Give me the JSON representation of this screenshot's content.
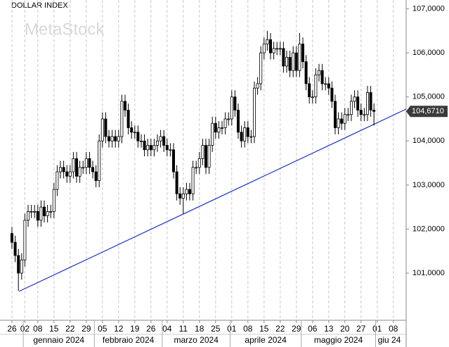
{
  "chart_data": {
    "type": "candlestick",
    "title": "DOLLAR INDEX",
    "watermark": "MetaStock",
    "color": "#000000",
    "categories": [
      "26",
      null,
      null,
      null,
      "02",
      null,
      null,
      null,
      "08",
      null,
      null,
      null,
      null,
      "15",
      null,
      null,
      null,
      null,
      "22",
      null,
      null,
      null,
      null,
      "29",
      null,
      null,
      null,
      null,
      "05",
      null,
      null,
      null,
      null,
      "12",
      null,
      null,
      null,
      null,
      "19",
      null,
      null,
      null,
      null,
      "26",
      null,
      null,
      null,
      null,
      "04",
      null,
      null,
      null,
      null,
      "11",
      null,
      null,
      null,
      null,
      "18",
      null,
      null,
      null,
      null,
      "25",
      null,
      null,
      null,
      null,
      "01",
      null,
      null,
      null,
      null,
      "08",
      null,
      null,
      null,
      null,
      "15",
      null,
      null,
      null,
      null,
      "22",
      null,
      null,
      null,
      null,
      "29",
      null,
      null,
      null,
      null,
      "06",
      null,
      null,
      null,
      null,
      "13",
      null,
      null,
      null,
      null,
      "20",
      null,
      null,
      null,
      null,
      "27",
      null,
      null,
      null,
      null,
      "01",
      null,
      null,
      null,
      null,
      "08",
      null,
      null
    ],
    "month_labels": [
      "gennaio 2024",
      "febbraio 2024",
      "marzo 2024",
      "aprile 2024",
      "maggio 2024",
      "giu 24"
    ],
    "open": [
      101.9,
      101.7,
      101.4,
      101.0,
      101.3,
      102.2,
      102.4,
      102.4,
      102.4,
      102.2,
      102.5,
      102.3,
      102.4,
      102.4,
      102.9,
      103.3,
      103.4,
      103.3,
      103.2,
      103.3,
      103.6,
      103.2,
      103.4,
      103.4,
      103.6,
      103.4,
      103.3,
      103.1,
      104.0,
      104.5,
      104.1,
      104.0,
      104.1,
      104.0,
      104.1,
      104.9,
      104.7,
      104.3,
      104.2,
      104.2,
      104.0,
      104.0,
      103.8,
      103.9,
      103.8,
      103.9,
      104.0,
      104.1,
      103.9,
      103.8,
      103.8,
      103.3,
      102.8,
      102.7,
      102.8,
      102.9,
      102.8,
      103.4,
      103.4,
      103.6,
      103.9,
      103.4,
      103.9,
      104.4,
      104.2,
      104.3,
      104.3,
      104.5,
      104.5,
      105.0,
      104.7,
      104.2,
      104.0,
      104.3,
      104.1,
      104.1,
      105.2,
      105.3,
      106.0,
      106.2,
      106.3,
      106.0,
      106.1,
      106.1,
      106.1,
      105.7,
      105.9,
      105.6,
      106.0,
      105.6,
      106.2,
      105.8,
      105.3,
      105.0,
      105.0,
      105.5,
      105.6,
      105.3,
      105.3,
      105.2,
      104.9,
      104.3,
      104.5,
      104.4,
      104.6,
      104.6,
      104.9,
      105.0,
      104.7,
      104.6,
      104.6,
      105.1,
      104.7,
      null,
      null,
      null,
      null,
      null,
      null,
      null,
      null
    ],
    "high": [
      102.05,
      101.85,
      101.55,
      101.45,
      102.35,
      102.55,
      102.55,
      102.55,
      102.55,
      102.65,
      102.65,
      102.55,
      102.55,
      103.05,
      103.45,
      103.55,
      103.55,
      103.45,
      103.45,
      103.75,
      103.75,
      103.55,
      103.55,
      103.75,
      103.75,
      103.55,
      103.45,
      104.15,
      104.65,
      104.65,
      104.25,
      104.25,
      104.25,
      104.25,
      105.05,
      105.05,
      104.85,
      104.45,
      104.35,
      104.35,
      104.15,
      104.15,
      104.05,
      104.05,
      104.05,
      104.15,
      104.25,
      104.25,
      104.05,
      103.95,
      103.95,
      103.45,
      102.95,
      102.95,
      103.05,
      103.05,
      103.55,
      103.55,
      103.75,
      104.05,
      104.05,
      104.05,
      104.55,
      104.55,
      104.45,
      104.45,
      104.65,
      104.65,
      105.15,
      105.15,
      104.85,
      104.35,
      104.45,
      104.45,
      104.25,
      105.35,
      105.45,
      106.15,
      106.35,
      106.5,
      106.45,
      106.25,
      106.25,
      106.25,
      106.25,
      106.05,
      106.05,
      106.15,
      106.15,
      106.45,
      106.35,
      105.95,
      105.45,
      105.15,
      105.65,
      105.75,
      105.75,
      105.45,
      105.45,
      105.35,
      105.05,
      104.65,
      104.65,
      104.75,
      104.75,
      105.05,
      105.15,
      105.15,
      104.85,
      104.75,
      105.25,
      105.25,
      104.85,
      null,
      null,
      null,
      null,
      null,
      null,
      null,
      null
    ],
    "low": [
      101.55,
      101.25,
      100.6,
      100.85,
      101.15,
      102.05,
      102.25,
      102.25,
      102.05,
      102.05,
      102.15,
      102.15,
      102.25,
      102.25,
      102.75,
      103.15,
      103.15,
      103.05,
      103.05,
      103.15,
      103.05,
      103.05,
      103.25,
      103.25,
      103.25,
      103.15,
      102.95,
      102.95,
      103.85,
      103.95,
      103.85,
      103.85,
      103.85,
      103.85,
      103.95,
      104.55,
      104.15,
      104.05,
      104.05,
      103.85,
      103.85,
      103.65,
      103.65,
      103.65,
      103.65,
      103.75,
      103.85,
      103.75,
      103.65,
      103.65,
      103.15,
      102.65,
      102.55,
      102.35,
      102.65,
      102.65,
      102.65,
      103.25,
      103.25,
      103.45,
      103.25,
      103.25,
      103.75,
      104.05,
      104.05,
      104.15,
      104.15,
      104.35,
      104.35,
      104.55,
      104.05,
      103.85,
      103.85,
      103.95,
      103.95,
      103.95,
      105.05,
      105.15,
      105.85,
      106.05,
      105.85,
      105.85,
      105.95,
      105.95,
      105.55,
      105.55,
      105.45,
      105.45,
      105.45,
      105.45,
      105.65,
      105.15,
      104.85,
      104.85,
      104.85,
      105.35,
      105.15,
      105.15,
      105.05,
      104.75,
      104.15,
      104.15,
      104.25,
      104.25,
      104.45,
      104.45,
      104.75,
      104.55,
      104.45,
      104.45,
      104.45,
      104.55,
      104.35,
      null,
      null,
      null,
      null,
      null,
      null,
      null,
      null
    ],
    "close": [
      101.7,
      101.4,
      101.0,
      101.3,
      102.2,
      102.4,
      102.4,
      102.4,
      102.2,
      102.5,
      102.3,
      102.4,
      102.4,
      102.9,
      103.3,
      103.4,
      103.3,
      103.2,
      103.3,
      103.6,
      103.2,
      103.4,
      103.4,
      103.6,
      103.4,
      103.3,
      103.1,
      104.0,
      104.5,
      104.1,
      104.0,
      104.1,
      104.0,
      104.1,
      104.9,
      104.7,
      104.3,
      104.2,
      104.2,
      104.0,
      104.0,
      103.8,
      103.9,
      103.8,
      103.9,
      104.0,
      104.1,
      103.9,
      103.8,
      103.8,
      103.3,
      102.8,
      102.7,
      102.8,
      102.9,
      102.8,
      103.4,
      103.4,
      103.6,
      103.9,
      103.4,
      103.9,
      104.4,
      104.2,
      104.3,
      104.3,
      104.5,
      104.5,
      105.0,
      104.7,
      104.2,
      104.0,
      104.3,
      104.1,
      104.1,
      105.2,
      105.3,
      106.0,
      106.2,
      106.3,
      106.0,
      106.1,
      106.1,
      106.1,
      105.7,
      105.9,
      105.6,
      106.0,
      105.6,
      106.2,
      105.8,
      105.3,
      105.0,
      105.0,
      105.5,
      105.6,
      105.3,
      105.3,
      105.2,
      104.9,
      104.3,
      104.5,
      104.4,
      104.6,
      104.6,
      104.9,
      105.0,
      104.7,
      104.6,
      104.6,
      105.1,
      104.7,
      104.671,
      null,
      null,
      null,
      null,
      null,
      null,
      null,
      null
    ],
    "last_price": 104.671,
    "last_price_label": "104,6710",
    "ylim": [
      99.93,
      107.2
    ],
    "yticks": [
      {
        "value": 101,
        "label": "101,0000"
      },
      {
        "value": 102,
        "label": "102,0000"
      },
      {
        "value": 103,
        "label": "103,0000"
      },
      {
        "value": 104,
        "label": "104,0000"
      },
      {
        "value": 105,
        "label": "105,0000"
      },
      {
        "value": 106,
        "label": "106,0000"
      },
      {
        "value": 107,
        "label": "107,0000"
      }
    ],
    "grid": true
  }
}
